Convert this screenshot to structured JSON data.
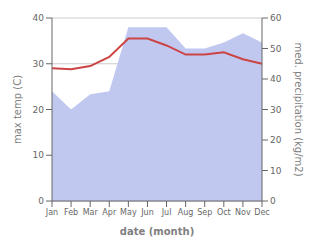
{
  "chart_data": {
    "type": "line",
    "categories": [
      "Jan",
      "Feb",
      "Mar",
      "Apr",
      "May",
      "Jun",
      "Jul",
      "Aug",
      "Sep",
      "Oct",
      "Nov",
      "Dec"
    ],
    "xlabel": "date (month)",
    "ylabel": "max temp (C)",
    "y2label": "med. precipitation (kg/m2)",
    "series": [
      {
        "type": "area",
        "axis": "y2",
        "color": "#c0c8f0",
        "values": [
          36.0,
          30.0,
          35.0,
          36.0,
          57.0,
          57.0,
          57.0,
          50.0,
          50.0,
          52.0,
          55.0,
          52.0
        ]
      },
      {
        "type": "line",
        "color": "#cc4444",
        "values": [
          29.0,
          28.8,
          29.5,
          31.5,
          35.5,
          35.5,
          34.0,
          32.0,
          32.0,
          32.5,
          31.0,
          30.0
        ]
      }
    ],
    "ylim": [
      0,
      40
    ],
    "yticks": [
      0,
      10,
      20,
      30,
      40
    ],
    "y2lim": [
      0,
      60
    ],
    "y2ticks": [
      0,
      10,
      20,
      30,
      40,
      50,
      60
    ],
    "grid": true
  }
}
